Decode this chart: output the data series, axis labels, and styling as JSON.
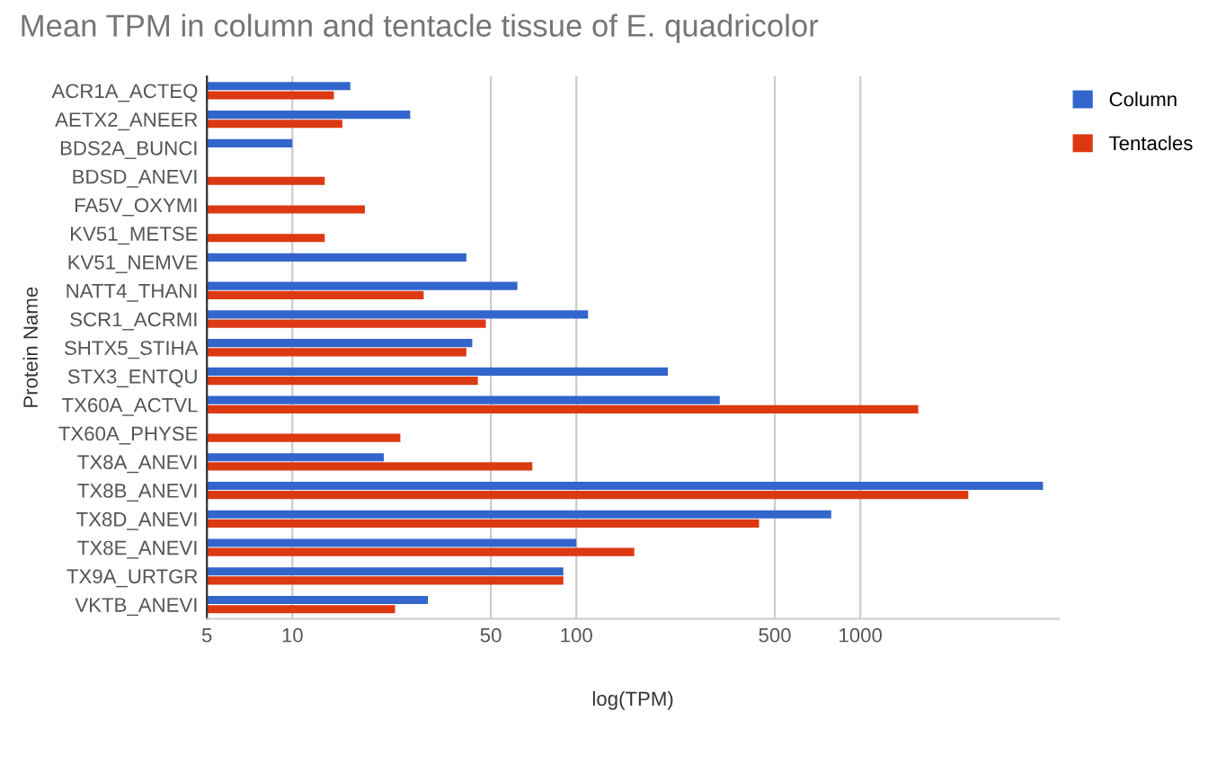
{
  "chart_data": {
    "type": "bar",
    "orientation": "horizontal",
    "title": "Mean TPM in column and tentacle tissue of E. quadricolor",
    "xlabel": "log(TPM)",
    "ylabel": "Protein Name",
    "categories": [
      "ACR1A_ACTEQ",
      "AETX2_ANEER",
      "BDS2A_BUNCI",
      "BDSD_ANEVI",
      "FA5V_OXYMI",
      "KV51_METSE",
      "KV51_NEMVE",
      "NATT4_THANI",
      "SCR1_ACRMI",
      "SHTX5_STIHA",
      "STX3_ENTQU",
      "TX60A_ACTVL",
      "TX60A_PHYSE",
      "TX8A_ANEVI",
      "TX8B_ANEVI",
      "TX8D_ANEVI",
      "TX8E_ANEVI",
      "TX9A_URTGR",
      "VKTB_ANEVI"
    ],
    "series": [
      {
        "name": "Column",
        "color": "#3366cc",
        "values": [
          16,
          26,
          10,
          null,
          null,
          null,
          41,
          62,
          110,
          43,
          210,
          320,
          null,
          21,
          4400,
          790,
          100,
          90,
          30
        ]
      },
      {
        "name": "Tentacles",
        "color": "#dc3912",
        "values": [
          14,
          15,
          null,
          13,
          18,
          13,
          null,
          29,
          48,
          41,
          45,
          1600,
          24,
          70,
          2400,
          440,
          160,
          90,
          23
        ]
      }
    ],
    "log": "x",
    "xlim": [
      5,
      5000
    ],
    "xticks": [
      5,
      10,
      50,
      100,
      500,
      1000
    ],
    "grid": "x",
    "legend": "top right"
  }
}
